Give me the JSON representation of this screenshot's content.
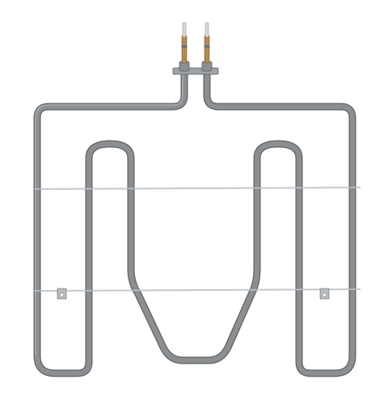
{
  "image": {
    "subject_icon": "oven-broil-element-icon",
    "colors": {
      "background": "#ffffff",
      "element_tube": "#8c8f92",
      "element_tube_edge": "#5f6266",
      "element_tube_highlight": "#c9cccf",
      "support_wire": "#c7cacd",
      "bracket": "#b8bcc0",
      "terminal_pin": "#b08a55",
      "terminal_pin_tip": "#d8d8d8",
      "mounting_plate": "#9ea2a6"
    }
  }
}
